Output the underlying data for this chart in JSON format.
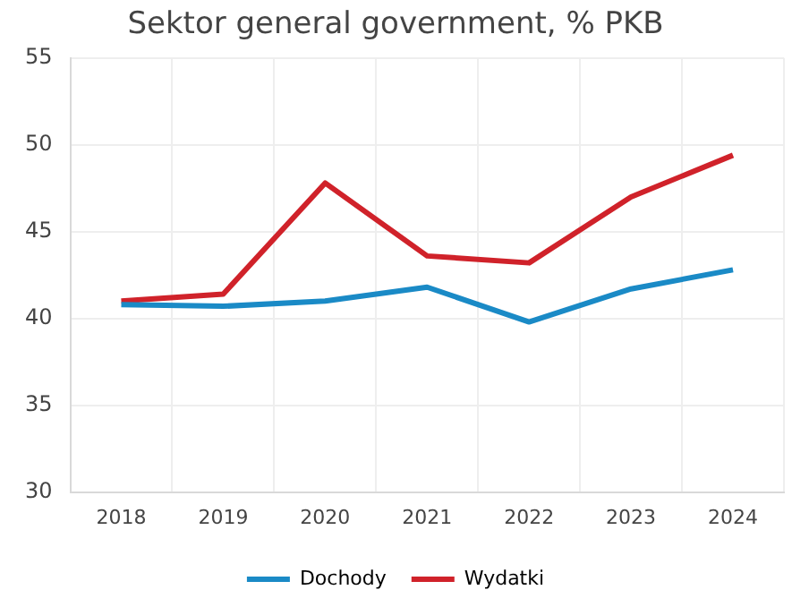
{
  "chart_data": {
    "type": "line",
    "title": "Sektor general government, % PKB",
    "categories": [
      "2018",
      "2019",
      "2020",
      "2021",
      "2022",
      "2023",
      "2024"
    ],
    "series": [
      {
        "name": "Dochody",
        "color": "#1a8ac6",
        "values": [
          40.8,
          40.7,
          41.0,
          41.8,
          39.8,
          41.7,
          42.8
        ]
      },
      {
        "name": "Wydatki",
        "color": "#d0222a",
        "values": [
          41.0,
          41.4,
          47.8,
          43.6,
          43.2,
          47.0,
          49.4
        ]
      }
    ],
    "ylim": [
      30,
      55
    ],
    "yticks": [
      30,
      35,
      40,
      45,
      50,
      55
    ],
    "grid": true,
    "legend": "bottom",
    "marker": "none",
    "line_style": "solid"
  }
}
